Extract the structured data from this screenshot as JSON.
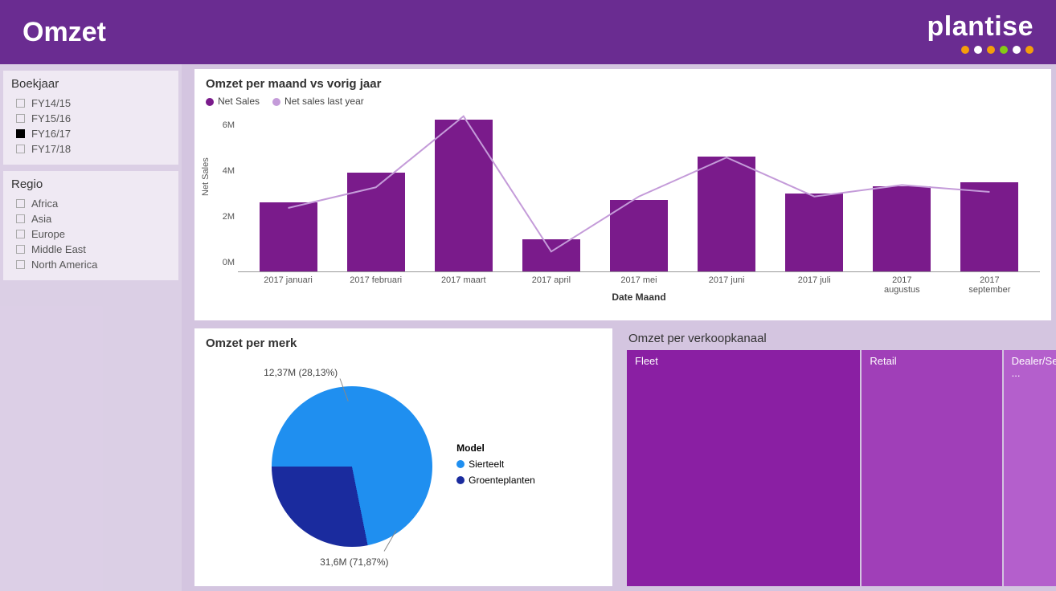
{
  "header": {
    "title": "Omzet",
    "logo_text": "plantise",
    "logo_dot_colors": [
      "#f59e0b",
      "#ffffff",
      "#f59e0b",
      "#84cc16",
      "#ffffff",
      "#f59e0b"
    ]
  },
  "colors": {
    "header_bg": "#6a2c91",
    "sidebar_bg_overlay": "rgba(255,255,255,0.18)",
    "panel_bg": "rgba(255,255,255,0.55)",
    "card_bg": "#ffffff",
    "text_primary": "#333333",
    "text_secondary": "#555555"
  },
  "filters": {
    "boekjaar": {
      "title": "Boekjaar",
      "items": [
        {
          "label": "FY14/15",
          "checked": false
        },
        {
          "label": "FY15/16",
          "checked": false
        },
        {
          "label": "FY16/17",
          "checked": true
        },
        {
          "label": "FY17/18",
          "checked": false
        }
      ]
    },
    "regio": {
      "title": "Regio",
      "items": [
        {
          "label": "Africa",
          "checked": false
        },
        {
          "label": "Asia",
          "checked": false
        },
        {
          "label": "Europe",
          "checked": false
        },
        {
          "label": "Middle East",
          "checked": false
        },
        {
          "label": "North America",
          "checked": false
        }
      ]
    }
  },
  "bar_chart": {
    "title": "Omzet per maand vs vorig jaar",
    "legend": [
      {
        "label": "Net Sales",
        "color": "#7a1b8b"
      },
      {
        "label": "Net sales last year",
        "color": "#c49bd9"
      }
    ],
    "y_axis_label": "Net Sales",
    "x_axis_label": "Date Maand",
    "y_ticks": [
      "0M",
      "2M",
      "4M",
      "6M"
    ],
    "y_max": 7,
    "categories": [
      "2017 januari",
      "2017 februari",
      "2017 maart",
      "2017 april",
      "2017 mei",
      "2017 juni",
      "2017 juli",
      "2017 augustus",
      "2017 september"
    ],
    "bar_values": [
      3.0,
      4.3,
      6.6,
      1.4,
      3.1,
      5.0,
      3.4,
      3.7,
      3.9
    ],
    "bar_color": "#7a1b8b",
    "line_values": [
      2.8,
      3.7,
      6.8,
      0.9,
      3.3,
      5.0,
      3.3,
      3.8,
      3.5
    ],
    "line_color": "#c49bd9",
    "line_width": 2
  },
  "pie_chart": {
    "title": "Omzet per merk",
    "legend_title": "Model",
    "slices": [
      {
        "label": "Sierteelt",
        "callout": "31,6M (71,87%)",
        "value": 71.87,
        "color": "#1f8ff0"
      },
      {
        "label": "Groenteplanten",
        "callout": "12,37M (28,13%)",
        "value": 28.13,
        "color": "#1a2b9e"
      }
    ],
    "start_angle_deg": -90
  },
  "treemap": {
    "title": "Omzet per verkoopkanaal",
    "tiles": [
      {
        "label": "Fleet",
        "weight": 55,
        "color": "#8a1fa3"
      },
      {
        "label": "Retail",
        "weight": 33,
        "color": "#a03fb8"
      },
      {
        "label": "Dealer/Self ...",
        "weight": 12,
        "color": "#b45fcc"
      }
    ]
  }
}
